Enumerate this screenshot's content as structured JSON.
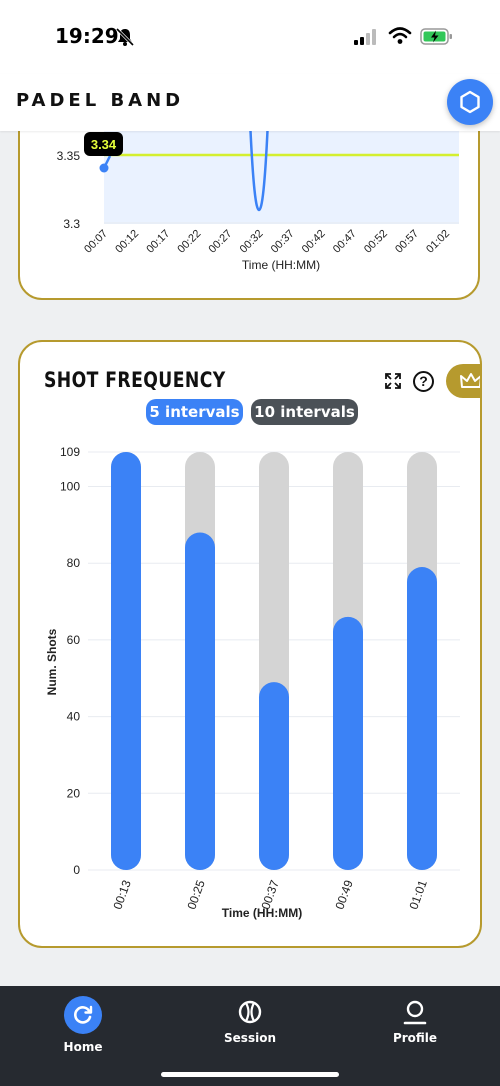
{
  "status_bar": {
    "time": "19:29"
  },
  "header": {
    "brand": "PADEL BAND"
  },
  "top_chart": {
    "y_ticks": [
      3.3,
      3.35
    ],
    "y_tick_labels": [
      "3.3",
      "3.35"
    ],
    "tooltip": "3.34",
    "x_labels": [
      "00:07",
      "00:12",
      "00:17",
      "00:22",
      "00:27",
      "00:32",
      "00:37",
      "00:42",
      "00:47",
      "00:52",
      "00:57",
      "01:02"
    ],
    "xlabel": "Time (HH:MM)",
    "colors": {
      "line": "#3b82f6",
      "threshold": "#d4ef2f",
      "fill": "#eaf2ff"
    }
  },
  "shot_frequency": {
    "title": "SHOT FREQUENCY",
    "tabs": [
      {
        "label": "5 intervals",
        "active": true
      },
      {
        "label": "10 intervals",
        "active": false
      }
    ]
  },
  "chart_data": {
    "type": "bar",
    "categories": [
      "00:13",
      "00:25",
      "00:37",
      "00:49",
      "01:01"
    ],
    "values": [
      109,
      88,
      49,
      66,
      79
    ],
    "max": 109,
    "ylim": [
      0,
      109
    ],
    "yticks": [
      0,
      20,
      40,
      60,
      80,
      100,
      109
    ],
    "xlabel": "Time (HH:MM)",
    "ylabel": "Num. Shots",
    "grid": true,
    "colors": {
      "bar": "#3b82f6",
      "track": "#d4d4d4"
    }
  },
  "nav": [
    {
      "label": "Home",
      "icon": "refresh-icon",
      "active": true
    },
    {
      "label": "Session",
      "icon": "padel-ball-icon",
      "active": false
    },
    {
      "label": "Profile",
      "icon": "person-icon",
      "active": false
    }
  ]
}
